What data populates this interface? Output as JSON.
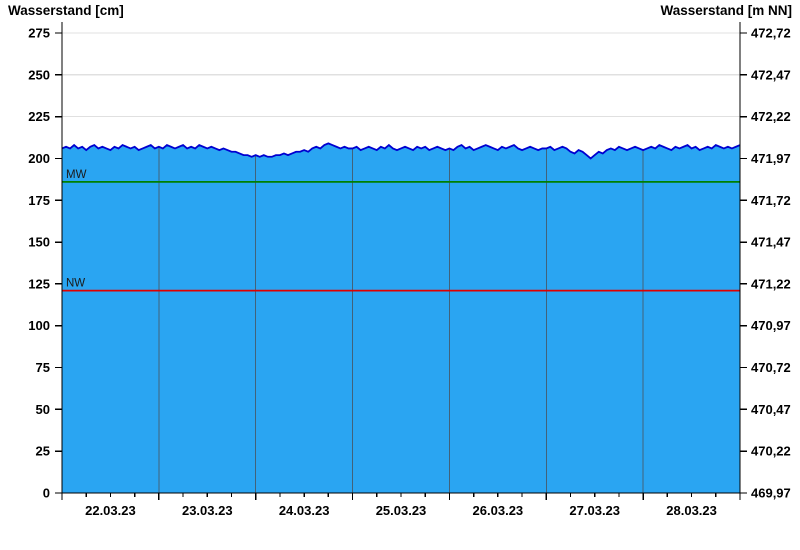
{
  "titles": {
    "left": "Wasserstand [cm]",
    "right": "Wasserstand [m NN]"
  },
  "chart_data": {
    "type": "area",
    "title": "",
    "x_axis": {
      "tick_labels": [
        "22.03.23",
        "23.03.23",
        "24.03.23",
        "25.03.23",
        "26.03.23",
        "27.03.23",
        "28.03.23"
      ],
      "range_days": 7,
      "minor_tick_hours": 6,
      "major_tick_hours": 24
    },
    "y_left": {
      "label": "Wasserstand [cm]",
      "min": 0,
      "max": 275,
      "tick_step": 25,
      "ticks": [
        0,
        25,
        50,
        75,
        100,
        125,
        150,
        175,
        200,
        225,
        250,
        275
      ]
    },
    "y_right": {
      "label": "Wasserstand [m NN]",
      "min": 469.97,
      "max": 472.72,
      "tick_step": 0.25,
      "ticks": [
        "469,97",
        "470,22",
        "470,47",
        "470,72",
        "470,97",
        "471,22",
        "471,47",
        "471,72",
        "471,97",
        "472,22",
        "472,47",
        "472,72"
      ]
    },
    "series": [
      {
        "name": "Wasserstand",
        "unit": "cm",
        "interval_hours": 1,
        "start": "22.03.23 00:00",
        "values": [
          206,
          207,
          206,
          208,
          206,
          207,
          205,
          207,
          208,
          206,
          207,
          206,
          205,
          207,
          206,
          208,
          207,
          206,
          207,
          205,
          206,
          207,
          208,
          206,
          207,
          206,
          208,
          207,
          206,
          207,
          208,
          206,
          207,
          206,
          208,
          207,
          206,
          207,
          206,
          205,
          206,
          205,
          204,
          204,
          203,
          202,
          202,
          201,
          202,
          201,
          202,
          201,
          201,
          202,
          202,
          203,
          202,
          203,
          204,
          204,
          205,
          204,
          206,
          207,
          206,
          208,
          209,
          208,
          207,
          206,
          207,
          206,
          206,
          207,
          205,
          206,
          207,
          206,
          205,
          207,
          206,
          208,
          206,
          205,
          206,
          207,
          206,
          205,
          207,
          206,
          207,
          205,
          206,
          207,
          206,
          205,
          206,
          205,
          207,
          208,
          206,
          207,
          205,
          206,
          207,
          208,
          207,
          206,
          205,
          207,
          206,
          207,
          208,
          206,
          205,
          206,
          207,
          206,
          205,
          206,
          206,
          207,
          205,
          206,
          207,
          206,
          204,
          203,
          205,
          204,
          202,
          200,
          202,
          204,
          203,
          205,
          206,
          205,
          207,
          206,
          205,
          206,
          207,
          206,
          205,
          206,
          207,
          206,
          208,
          207,
          206,
          205,
          207,
          206,
          207,
          208,
          206,
          207,
          205,
          206,
          207,
          206,
          208,
          207,
          206,
          207,
          206,
          207,
          208
        ]
      }
    ],
    "reference_lines": [
      {
        "name": "MW",
        "value_cm": 186,
        "color": "#008000"
      },
      {
        "name": "NW",
        "value_cm": 121,
        "color": "#e00000"
      }
    ],
    "colors": {
      "area_fill": "#2aa5f2",
      "series_line": "#0000d0",
      "gridline_horizontal": "#e0e0e0",
      "gridline_vertical_over_area": "#41627a",
      "axis": "#000000",
      "reference_label_text": "#1a1a1a"
    },
    "legend": {
      "visible": false
    },
    "grid": {
      "horizontal": true,
      "vertical_day_lines": true
    }
  }
}
